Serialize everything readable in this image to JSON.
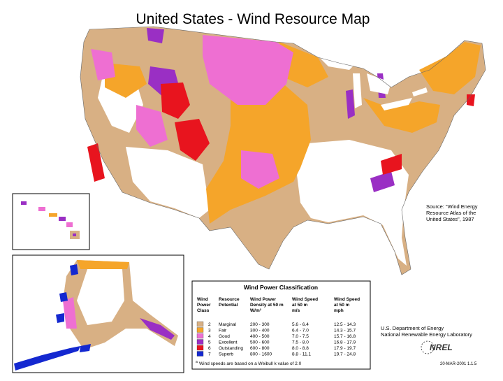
{
  "title": "United States - Wind Resource Map",
  "source": {
    "lines": [
      "Source:  \"Wind Energy",
      "Resource Atlas of the",
      "United States\", 1987"
    ]
  },
  "legend": {
    "title": "Wind Power Classification",
    "headers": [
      [
        "Wind",
        "Power",
        "Class"
      ],
      [
        "Resource",
        "Potential"
      ],
      [
        "Wind Power",
        "Density at 50 m",
        "W/m²"
      ],
      [
        "Wind Speed",
        "at 50 m",
        "m/s"
      ],
      [
        "Wind Speed",
        "at 50 m",
        "mph"
      ]
    ],
    "rows": [
      {
        "class": "2",
        "potential": "Marginal",
        "density": "200 - 300",
        "speed_ms": "5.6 - 6.4",
        "speed_mph": "12.5 - 14.3",
        "color": "#d8b084"
      },
      {
        "class": "3",
        "potential": "Fair",
        "density": "300 - 400",
        "speed_ms": "6.4 - 7.0",
        "speed_mph": "14.3 - 15.7",
        "color": "#f5a52a"
      },
      {
        "class": "4",
        "potential": "Good",
        "density": "400 - 500",
        "speed_ms": "7.0 - 7.5",
        "speed_mph": "15.7 - 16.8",
        "color": "#ee6fd2"
      },
      {
        "class": "5",
        "potential": "Excellent",
        "density": "500 - 600",
        "speed_ms": "7.5 - 8.0",
        "speed_mph": "16.8 - 17.9",
        "color": "#9a2fc4"
      },
      {
        "class": "6",
        "potential": "Outstanding",
        "density": "600 - 800",
        "speed_ms": "8.0 - 8.8",
        "speed_mph": "17.9 - 19.7",
        "color": "#e8141e"
      },
      {
        "class": "7",
        "potential": "Superb",
        "density": "800 - 1600",
        "speed_ms": "8.8 - 11.1",
        "speed_mph": "19.7 - 24.8",
        "color": "#1428d0"
      }
    ],
    "footnote_marker": "a",
    "footnote": "Wind speeds are based on a Weibull k value of 2.0"
  },
  "agency": [
    "U.S. Department of Energy",
    "National Renewable Energy Laboratory"
  ],
  "logo": "NREL",
  "code": "20-MAR-2001 1.1.5"
}
